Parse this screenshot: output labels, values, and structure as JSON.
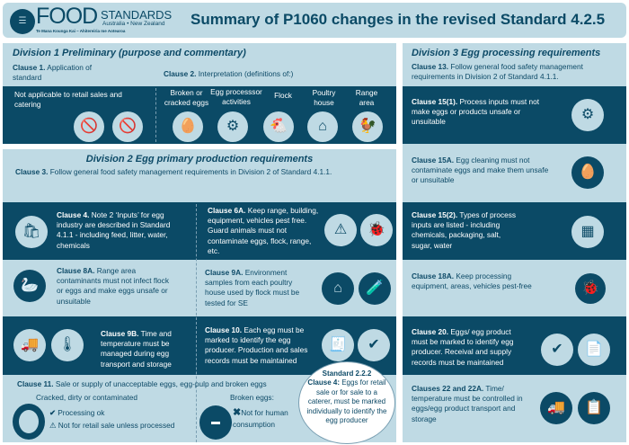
{
  "header": {
    "logo_main": "FOOD",
    "logo_sub": "STANDARDS",
    "logo_region": "Australia • New Zealand",
    "logo_maori": "Te Mana Kounga Kai – Ahitereiria me Aotearoa",
    "title": "Summary of P1060 changes in the revised Standard 4.2.5"
  },
  "colors": {
    "dark": "#0b4a66",
    "light": "#bfdae4"
  },
  "div1": {
    "title": "Division 1 Preliminary (purpose and commentary)",
    "c1_label": "Clause 1.",
    "c1_text": " Application of standard",
    "c2_label": "Clause 2.",
    "c2_text": " Interpretation (definitions of:)",
    "not_applicable": "Not applicable to retail sales and catering",
    "definitions": [
      {
        "label": "Broken or cracked eggs",
        "icon": "cracked-eggs-icon"
      },
      {
        "label": "Egg processsor activities",
        "icon": "egg-processor-icon"
      },
      {
        "label": "Flock",
        "icon": "chickens-icon"
      },
      {
        "label": "Poultry house",
        "icon": "poultry-house-icon"
      },
      {
        "label": "Range area",
        "icon": "rooster-icon"
      }
    ]
  },
  "div2": {
    "title": "Division 2 Egg primary production requirements",
    "c3_label": "Clause 3.",
    "c3_text": " Follow general food safety management requirements in Division 2 of Standard 4.1.1.",
    "c4_label": "Clause 4.",
    "c4_text": " Note 2 ‘Inputs’ for egg industry are described in Standard 4.1.1 - including feed, litter, water, chemicals",
    "c6a_label": "Clause 6A.",
    "c6a_text": " Keep range, building, equipment, vehicles pest free. Guard animals must not contaminate eggs, flock, range, etc.",
    "c8a_label": "Clause 8A.",
    "c8a_text": " Range area contaminants must not infect flock or eggs and make eggs unsafe or unsuitable",
    "c9a_label": "Clause 9A.",
    "c9a_text": " Environment samples from each poultry house used by flock must be tested for SE",
    "c9b_label": "Clause 9B.",
    "c9b_text": " Time and temperature must be managed during egg transport and storage",
    "c10_label": "Clause 10.",
    "c10_text": " Each egg must be marked to identify the egg producer. Production and sales records must be maintained",
    "c11_label": "Clause 11.",
    "c11_text": " Sale or supply of unacceptable eggs, egg-pulp and broken eggs",
    "cracked_title": "Cracked, dirty or contaminated",
    "processing_ok": "Processing ok",
    "not_retail": "Not for retail sale unless processed",
    "broken_title": "Broken eggs:",
    "not_human": "Not for human consumption",
    "bubble_title": "Standard 2.2.2",
    "bubble_label": "Clause 4:",
    "bubble_text": " Eggs for retail sale or for sale to a caterer, must be marked individually to identify the egg producer"
  },
  "div3": {
    "title": "Division 3 Egg processing requirements",
    "c13_label": "Clause 13.",
    "c13_text": " Follow general food safety management requirements in Division 2 of Standard 4.1.1.",
    "c151_label": "Clause 15(1).",
    "c151_text": " Process inputs must not make eggs or products unsafe or unsuitable",
    "c15a_label": "Clause 15A.",
    "c15a_text": " Egg cleaning must not contaminate eggs and make them unsafe or unsuitable",
    "c152_label": "Clause 15(2).",
    "c152_text": " Types of process inputs are listed - including chemicals, packaging, salt, sugar, water",
    "c18a_label": "Clause 18A.",
    "c18a_text": " Keep processing equipment, areas, vehicles pest-free",
    "c20_label": "Clause 20.",
    "c20_text": " Eggs/ egg product must be marked to identify egg producer. Receival and supply records must be maintained",
    "c22_label": "Clauses 22 and 22A.",
    "c22_text": " Time/ temperature must be controlled in eggs/egg product transport and storage"
  }
}
